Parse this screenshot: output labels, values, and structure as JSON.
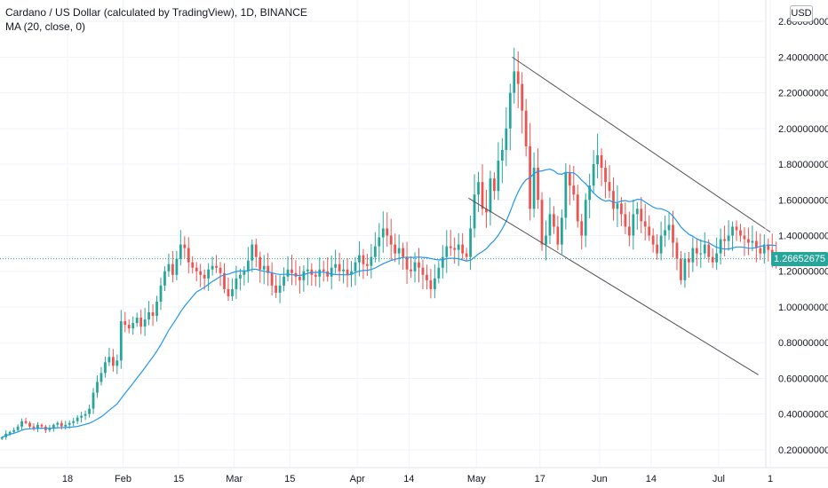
{
  "header": {
    "title": "Cardano / US Dollar (calculated by TradingView), 1D, BINANCE",
    "indicator": "MA (20, close, 0)",
    "currency": "USD"
  },
  "last_price_label": "1.26652675",
  "colors": {
    "up": "#26a69a",
    "down": "#ef5350",
    "ma": "#2196f3",
    "trendline": "#555555",
    "grid": "#f0f3fa",
    "price_line": "#26a69a"
  },
  "chart_data": {
    "type": "candlestick",
    "ylim": [
      0.1,
      2.72
    ],
    "yticks": [
      "0.20000000",
      "0.40000000",
      "0.60000000",
      "0.80000000",
      "1.00000000",
      "1.20000000",
      "1.40000000",
      "1.60000000",
      "1.80000000",
      "2.00000000",
      "2.20000000",
      "2.40000000",
      "2.60000000"
    ],
    "ytick_values": [
      0.2,
      0.4,
      0.6,
      0.8,
      1.0,
      1.2,
      1.4,
      1.6,
      1.8,
      2.0,
      2.2,
      2.4,
      2.6
    ],
    "x_start": "2021-01-01",
    "x_end": "2021-07-14",
    "xticks": [
      {
        "label": "18",
        "date": "2021-01-18"
      },
      {
        "label": "Feb",
        "date": "2021-02-01"
      },
      {
        "label": "15",
        "date": "2021-02-15"
      },
      {
        "label": "Mar",
        "date": "2021-03-01"
      },
      {
        "label": "15",
        "date": "2021-03-15"
      },
      {
        "label": "Apr",
        "date": "2021-04-01"
      },
      {
        "label": "14",
        "date": "2021-04-14"
      },
      {
        "label": "May",
        "date": "2021-05-01"
      },
      {
        "label": "17",
        "date": "2021-05-17"
      },
      {
        "label": "Jun",
        "date": "2021-06-01"
      },
      {
        "label": "14",
        "date": "2021-06-14"
      },
      {
        "label": "Jul",
        "date": "2021-07-01"
      },
      {
        "label": "1",
        "date": "2021-07-14"
      }
    ],
    "close_values": [
      0.27,
      0.29,
      0.3,
      0.31,
      0.33,
      0.36,
      0.35,
      0.33,
      0.32,
      0.34,
      0.33,
      0.31,
      0.32,
      0.34,
      0.35,
      0.33,
      0.34,
      0.35,
      0.36,
      0.38,
      0.39,
      0.4,
      0.43,
      0.52,
      0.58,
      0.63,
      0.69,
      0.72,
      0.67,
      0.7,
      0.92,
      0.9,
      0.88,
      0.91,
      0.94,
      0.89,
      0.93,
      0.97,
      0.95,
      1.03,
      1.12,
      1.2,
      1.24,
      1.18,
      1.27,
      1.35,
      1.33,
      1.25,
      1.22,
      1.2,
      1.18,
      1.16,
      1.21,
      1.23,
      1.22,
      1.19,
      1.1,
      1.06,
      1.1,
      1.16,
      1.18,
      1.2,
      1.26,
      1.35,
      1.28,
      1.21,
      1.23,
      1.19,
      1.12,
      1.08,
      1.12,
      1.17,
      1.21,
      1.19,
      1.17,
      1.15,
      1.2,
      1.21,
      1.18,
      1.17,
      1.21,
      1.2,
      1.17,
      1.22,
      1.24,
      1.2,
      1.21,
      1.18,
      1.2,
      1.25,
      1.29,
      1.24,
      1.23,
      1.28,
      1.34,
      1.39,
      1.44,
      1.4,
      1.35,
      1.3,
      1.33,
      1.28,
      1.21,
      1.2,
      1.25,
      1.22,
      1.18,
      1.15,
      1.1,
      1.16,
      1.22,
      1.28,
      1.34,
      1.33,
      1.32,
      1.35,
      1.3,
      1.28,
      1.44,
      1.63,
      1.7,
      1.55,
      1.53,
      1.72,
      1.65,
      1.82,
      1.88,
      2.0,
      2.2,
      2.32,
      2.25,
      2.1,
      1.9,
      1.55,
      1.78,
      1.6,
      1.35,
      1.4,
      1.52,
      1.45,
      1.35,
      1.5,
      1.75,
      1.68,
      1.63,
      1.48,
      1.4,
      1.6,
      1.68,
      1.8,
      1.85,
      1.78,
      1.7,
      1.65,
      1.55,
      1.58,
      1.52,
      1.45,
      1.4,
      1.52,
      1.55,
      1.48,
      1.45,
      1.4,
      1.35,
      1.3,
      1.4,
      1.43,
      1.46,
      1.36,
      1.27,
      1.15,
      1.27,
      1.25,
      1.33,
      1.3,
      1.3,
      1.35,
      1.28,
      1.25,
      1.3,
      1.38,
      1.37,
      1.4,
      1.45,
      1.43,
      1.4,
      1.38,
      1.36,
      1.37,
      1.33,
      1.3,
      1.35,
      1.32,
      1.3,
      1.27
    ]
  }
}
